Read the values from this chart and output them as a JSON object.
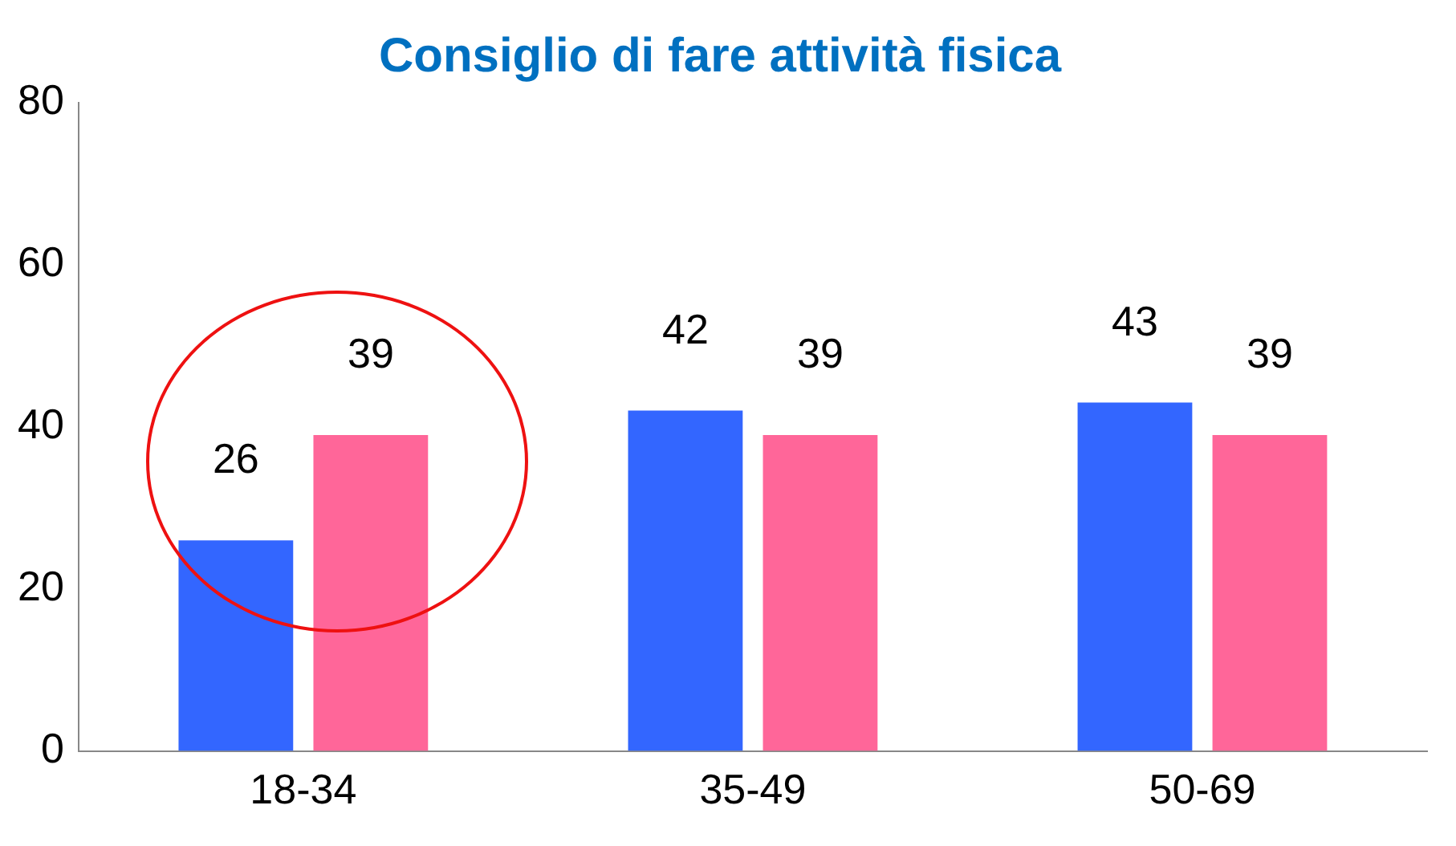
{
  "chart_data": {
    "type": "bar",
    "title": "Consiglio di fare attività fisica",
    "categories": [
      "18-34",
      "35-49",
      "50-69"
    ],
    "series": [
      {
        "color": "#3366ff",
        "values": [
          26,
          42,
          43
        ]
      },
      {
        "color": "#ff6699",
        "values": [
          39,
          39,
          39
        ]
      }
    ],
    "ylim": [
      0,
      80
    ],
    "yticks": [
      0,
      20,
      40,
      60,
      80
    ],
    "grid": false,
    "legend": false,
    "data_labels": true
  }
}
